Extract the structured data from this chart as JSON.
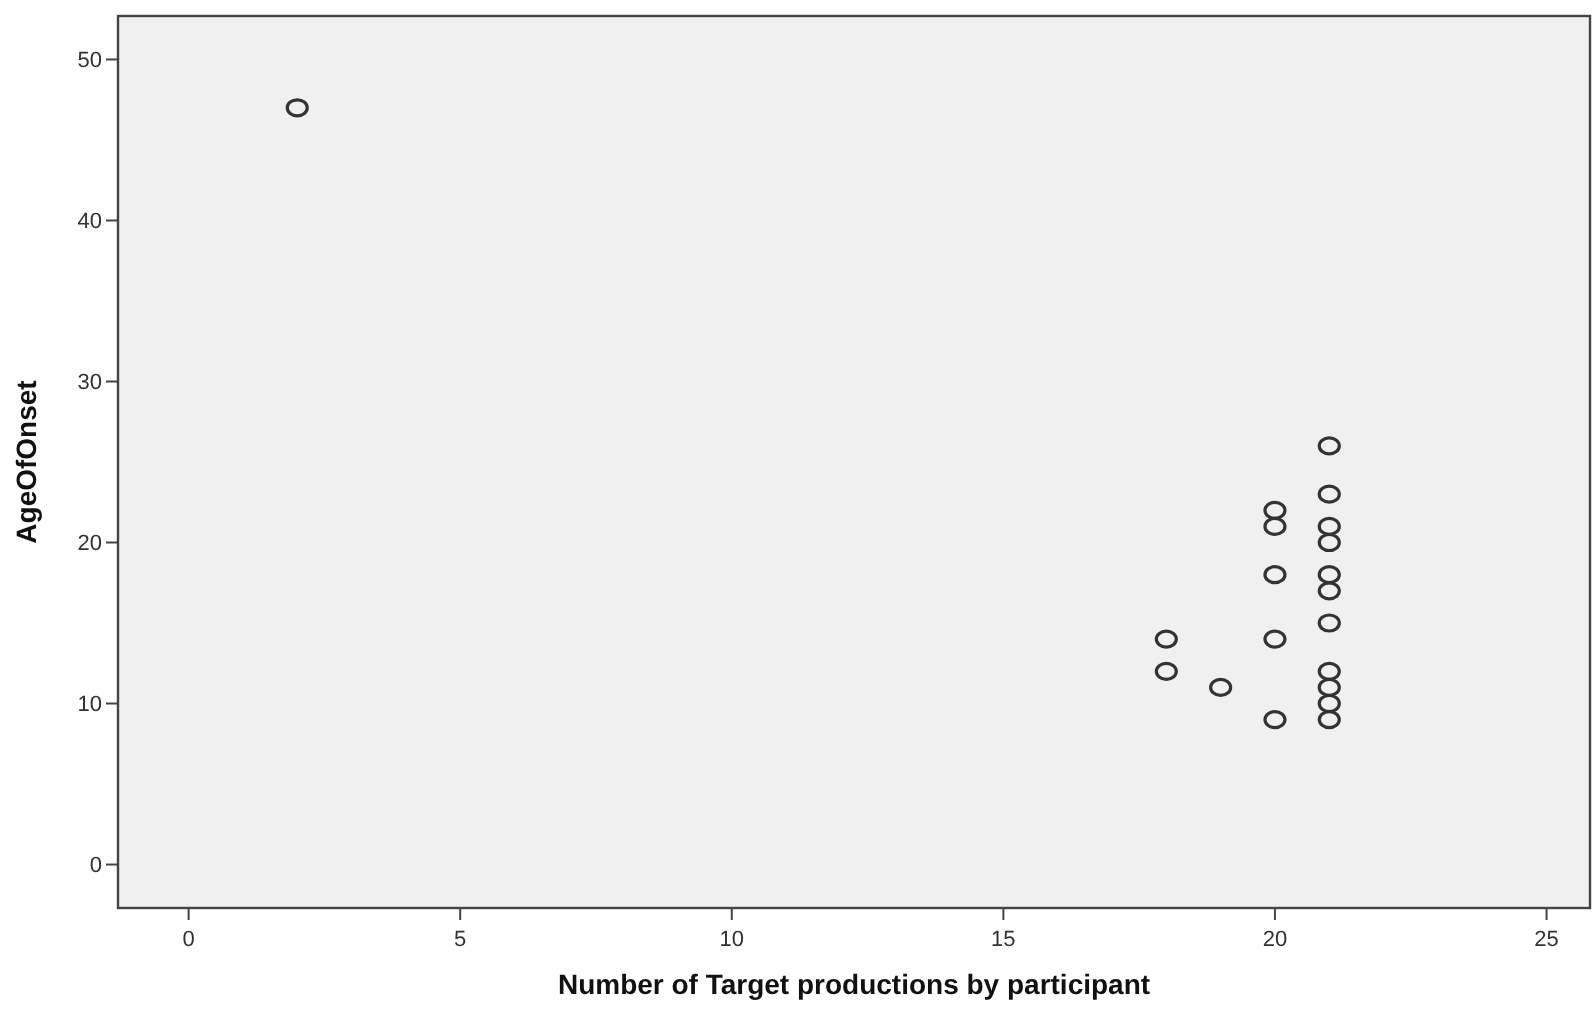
{
  "chart_data": {
    "type": "scatter",
    "xlabel": "Number of Target productions by participant",
    "ylabel": "AgeOfOnset",
    "x": [
      2,
      18,
      18,
      19,
      20,
      20,
      20,
      20,
      20,
      21,
      21,
      21,
      21,
      21,
      21,
      21,
      21,
      21,
      21,
      21
    ],
    "values": [
      47,
      14,
      12,
      11,
      22,
      21,
      18,
      14,
      9,
      26,
      23,
      21,
      20,
      18,
      17,
      15,
      12,
      11,
      10,
      9
    ],
    "color": "#333333",
    "marker": "circle",
    "xlim": [
      -1.3,
      25.8
    ],
    "xticks": [
      0,
      5,
      10,
      15,
      20,
      25
    ],
    "ylim": [
      -2.7,
      52.7
    ],
    "yticks": [
      0,
      10,
      20,
      30,
      40,
      50
    ]
  }
}
